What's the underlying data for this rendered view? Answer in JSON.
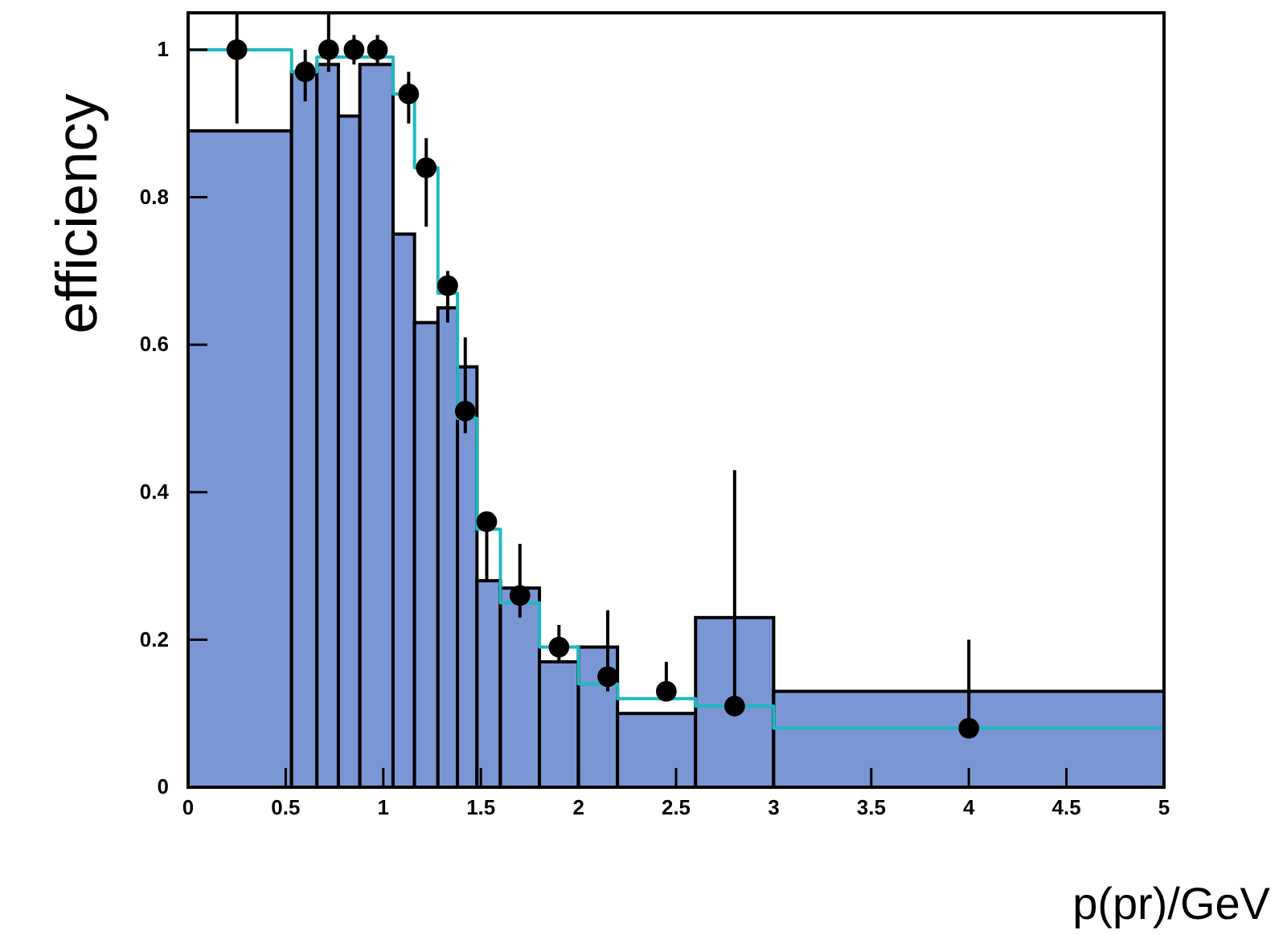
{
  "chart_data": {
    "type": "histogram",
    "xlabel": "p(pr)/GeV",
    "ylabel": "efficiency",
    "xlim": [
      0,
      5
    ],
    "ylim": [
      0,
      1.05
    ],
    "xticks": [
      0,
      0.5,
      1,
      1.5,
      2,
      2.5,
      3,
      3.5,
      4,
      4.5,
      5
    ],
    "yticks": [
      0,
      0.2,
      0.4,
      0.6,
      0.8,
      1
    ],
    "grid": false,
    "series": [
      {
        "color": "#7b96d4",
        "bins": [
          0,
          0.53,
          0.66,
          0.77,
          0.88,
          1.05,
          1.16,
          1.28,
          1.38,
          1.48,
          1.6,
          1.8,
          2.0,
          2.2,
          2.6,
          3.0,
          5.0
        ],
        "values": [
          0.89,
          0.97,
          0.98,
          0.91,
          0.98,
          0.75,
          0.63,
          0.65,
          0.57,
          0.28,
          0.27,
          0.17,
          0.19,
          0.1,
          0.23,
          0.13
        ]
      },
      {
        "type": "step",
        "color": "#1fb8c0",
        "x": [
          0,
          0.53,
          0.66,
          1.05,
          1.16,
          1.28,
          1.38,
          1.48,
          1.6,
          1.8,
          2.0,
          2.2,
          2.6,
          3.0,
          5.0
        ],
        "values": [
          1.0,
          0.97,
          0.99,
          0.94,
          0.84,
          0.67,
          0.5,
          0.35,
          0.25,
          0.19,
          0.14,
          0.12,
          0.11,
          0.08,
          0.08
        ]
      },
      {
        "type": "scatter",
        "color": "#000000",
        "marker": "circle",
        "x": [
          0.25,
          0.6,
          0.72,
          0.85,
          0.97,
          1.13,
          1.22,
          1.33,
          1.42,
          1.53,
          1.7,
          1.9,
          2.15,
          2.45,
          2.8,
          4.0
        ],
        "values": [
          1.0,
          0.97,
          1.0,
          1.0,
          1.0,
          0.94,
          0.84,
          0.68,
          0.51,
          0.36,
          0.26,
          0.19,
          0.15,
          0.13,
          0.11,
          0.08
        ],
        "errors": [
          [
            0.9,
            1.05
          ],
          [
            0.93,
            1.0
          ],
          [
            0.97,
            1.05
          ],
          [
            0.98,
            1.02
          ],
          [
            0.98,
            1.02
          ],
          [
            0.9,
            0.97
          ],
          [
            0.76,
            0.88
          ],
          [
            0.63,
            0.7
          ],
          [
            0.48,
            0.61
          ],
          [
            0.28,
            0.37
          ],
          [
            0.23,
            0.33
          ],
          [
            0.17,
            0.22
          ],
          [
            0.13,
            0.24
          ],
          [
            0.12,
            0.17
          ],
          [
            0.1,
            0.43
          ],
          [
            0.07,
            0.2
          ]
        ]
      }
    ]
  }
}
